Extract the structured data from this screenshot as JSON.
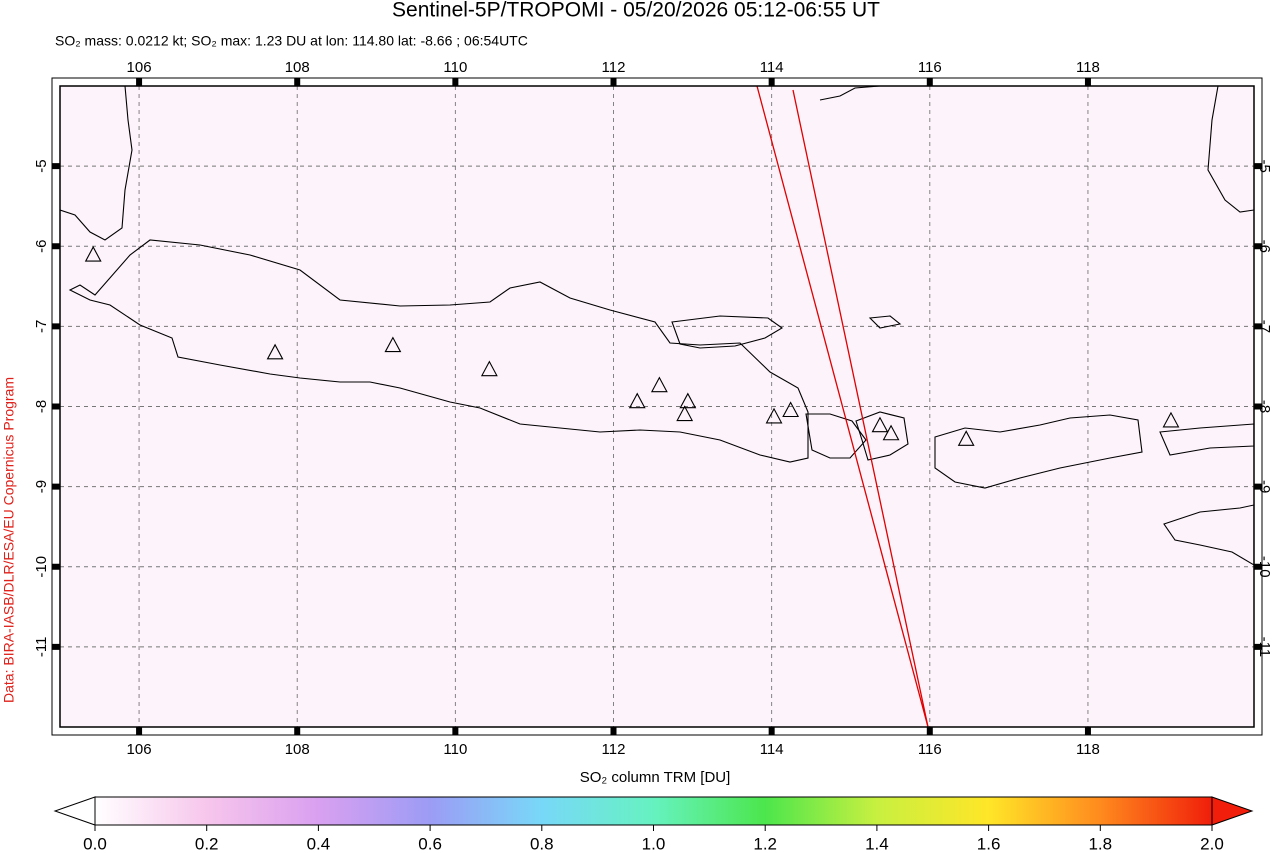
{
  "chart_data": {
    "type": "map",
    "title": "Sentinel-5P/TROPOMI - 05/20/2026 05:12-06:55 UT",
    "subtitle": "SO₂ mass: 0.0212 kt; SO₂ max: 1.23 DU at lon: 114.80 lat: -8.66 ; 06:54UTC",
    "credit": "Data: BIRA-IASB/DLR/ESA/EU Copernicus Program",
    "xlim": [
      105,
      120.1
    ],
    "ylim": [
      -12,
      -4
    ],
    "xticks": [
      106,
      108,
      110,
      112,
      114,
      116,
      118
    ],
    "yticks": [
      -5,
      -6,
      -7,
      -8,
      -9,
      -10,
      -11
    ],
    "grid": true,
    "volcanoes": {
      "lon": [
        105.42,
        107.72,
        109.21,
        110.43,
        112.3,
        112.58,
        112.94,
        112.9,
        114.03,
        114.24,
        115.37,
        115.51,
        116.46,
        119.05
      ],
      "lat": [
        -6.11,
        -7.33,
        -7.24,
        -7.54,
        -7.94,
        -7.74,
        -7.94,
        -8.1,
        -8.13,
        -8.05,
        -8.24,
        -8.34,
        -8.41,
        -8.18
      ]
    },
    "colorbar": {
      "label": "SO₂ column TRM [DU]",
      "lim": [
        0,
        2
      ],
      "ticks": [
        {
          "value": 0,
          "label": "0.0"
        },
        0.2,
        0.4,
        0.6,
        0.8,
        {
          "value": 1,
          "label": "1.0"
        },
        1.2,
        1.4,
        1.6,
        1.8,
        {
          "value": 2,
          "label": "2.0"
        }
      ],
      "colors": [
        "#ffffff",
        "#f7c6ec",
        "#d9a0f0",
        "#9c9cf5",
        "#78d8f8",
        "#66f2c0",
        "#4ce64c",
        "#c8f040",
        "#ffe628",
        "#ff8a1e",
        "#f01e0a"
      ]
    }
  }
}
